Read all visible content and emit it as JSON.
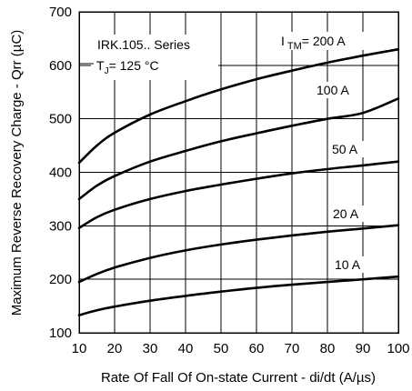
{
  "chart_data": {
    "type": "line",
    "xlabel": "Rate Of Fall Of On-state Current - di/dt (A/µs)",
    "ylabel": "Maximum Reverse Recovery Charge - Qrr (µC)",
    "xlim": [
      10,
      100
    ],
    "ylim": [
      100,
      700
    ],
    "x_ticks": [
      "10",
      "20",
      "30",
      "40",
      "50",
      "60",
      "70",
      "80",
      "90",
      "100"
    ],
    "y_ticks": [
      "100",
      "200",
      "300",
      "400",
      "500",
      "600",
      "700"
    ],
    "grid": true,
    "annotations": {
      "series_name": "IRK.105.. Series",
      "temperature": "T J = 125 °C"
    },
    "x": [
      10,
      15,
      20,
      30,
      40,
      50,
      60,
      70,
      80,
      90,
      100
    ],
    "series": [
      {
        "name": "I TM = 200 A",
        "values": [
          418,
          450,
          474,
          508,
          533,
          555,
          574,
          590,
          605,
          618,
          630
        ]
      },
      {
        "name": "100 A",
        "values": [
          350,
          375,
          393,
          420,
          440,
          458,
          473,
          487,
          500,
          511,
          538
        ]
      },
      {
        "name": "50 A",
        "values": [
          296,
          316,
          330,
          350,
          365,
          377,
          388,
          398,
          406,
          413,
          420
        ]
      },
      {
        "name": "20 A",
        "values": [
          195,
          210,
          222,
          240,
          254,
          265,
          274,
          282,
          289,
          295,
          301
        ]
      },
      {
        "name": "10 A",
        "values": [
          133,
          142,
          149,
          160,
          169,
          177,
          184,
          190,
          195,
          200,
          205
        ]
      }
    ]
  }
}
